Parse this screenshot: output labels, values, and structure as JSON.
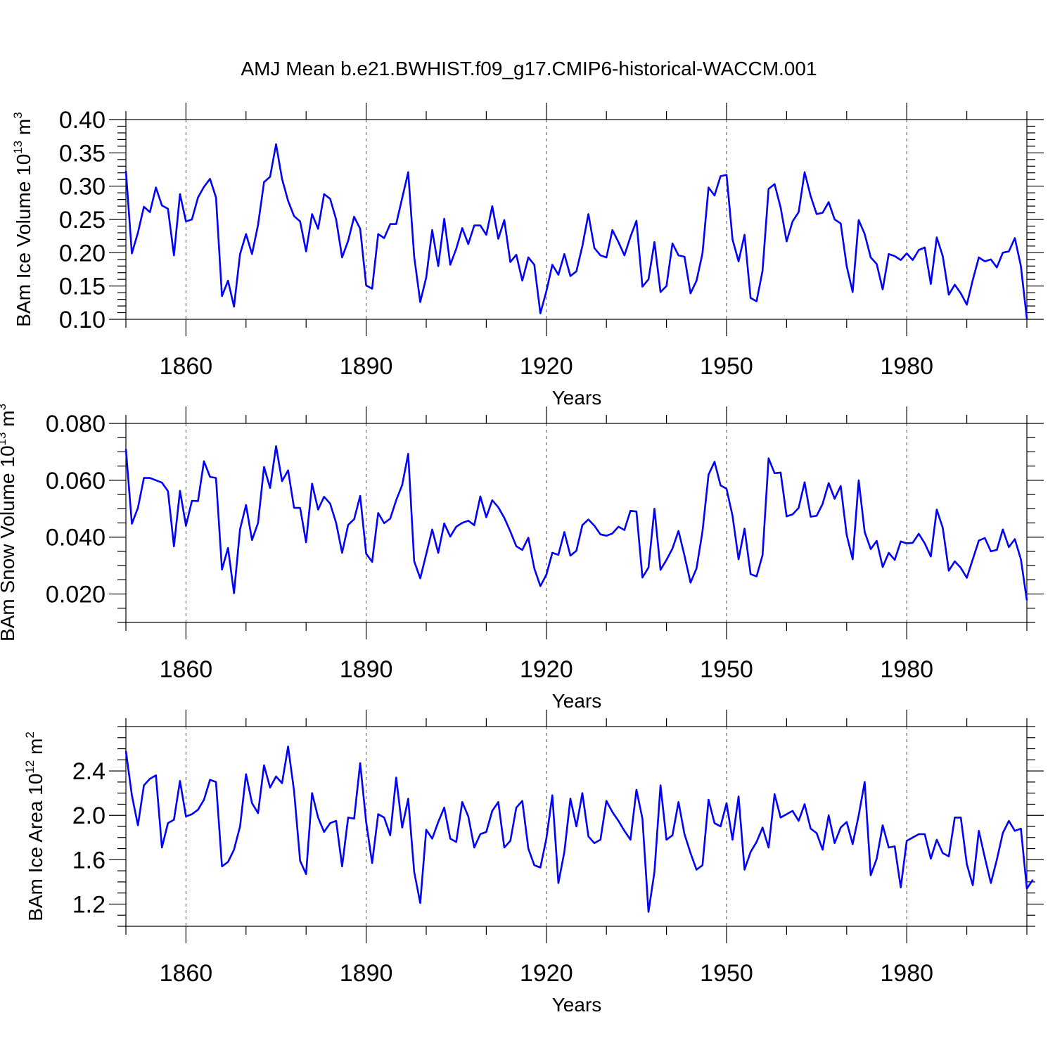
{
  "figure_title": "AMJ Mean b.e21.BWHIST.f09_g17.CMIP6-historical-WACCM.001",
  "colors": {
    "line": "#0000ff",
    "axes": "#000000"
  },
  "chart_data": [
    {
      "id": "ice-volume",
      "type": "line",
      "title": "",
      "xlabel": "Years",
      "ylabel_parts": [
        "BAm Ice Volume 10",
        "13",
        " m",
        "3"
      ],
      "xlim": [
        1850,
        2000
      ],
      "ylim": [
        0.1,
        0.4
      ],
      "x_ticks": [
        1860,
        1890,
        1920,
        1950,
        1980
      ],
      "x_tick_labels": [
        "1860",
        "1890",
        "1920",
        "1950",
        "1980"
      ],
      "y_ticks": [
        0.1,
        0.15,
        0.2,
        0.25,
        0.3,
        0.35,
        0.4
      ],
      "y_tick_labels": [
        "0.10",
        "0.15",
        "0.20",
        "0.25",
        "0.30",
        "0.35",
        "0.40"
      ],
      "y_minor_step": 0.01,
      "x_start": 1850,
      "values": [
        0.323,
        0.199,
        0.23,
        0.269,
        0.261,
        0.298,
        0.271,
        0.266,
        0.196,
        0.288,
        0.247,
        0.25,
        0.283,
        0.299,
        0.311,
        0.283,
        0.135,
        0.158,
        0.119,
        0.198,
        0.228,
        0.198,
        0.242,
        0.306,
        0.314,
        0.363,
        0.311,
        0.278,
        0.255,
        0.247,
        0.202,
        0.258,
        0.236,
        0.288,
        0.281,
        0.25,
        0.193,
        0.218,
        0.254,
        0.236,
        0.151,
        0.146,
        0.228,
        0.222,
        0.243,
        0.243,
        0.282,
        0.321,
        0.194,
        0.126,
        0.163,
        0.234,
        0.18,
        0.251,
        0.182,
        0.206,
        0.237,
        0.213,
        0.241,
        0.241,
        0.227,
        0.27,
        0.221,
        0.249,
        0.186,
        0.197,
        0.158,
        0.193,
        0.182,
        0.109,
        0.142,
        0.182,
        0.167,
        0.198,
        0.165,
        0.172,
        0.21,
        0.258,
        0.207,
        0.196,
        0.193,
        0.234,
        0.216,
        0.196,
        0.224,
        0.248,
        0.149,
        0.16,
        0.216,
        0.141,
        0.15,
        0.214,
        0.196,
        0.194,
        0.139,
        0.158,
        0.199,
        0.298,
        0.286,
        0.315,
        0.317,
        0.22,
        0.187,
        0.227,
        0.132,
        0.127,
        0.173,
        0.296,
        0.303,
        0.268,
        0.217,
        0.247,
        0.261,
        0.321,
        0.285,
        0.258,
        0.26,
        0.276,
        0.25,
        0.244,
        0.18,
        0.141,
        0.249,
        0.228,
        0.193,
        0.183,
        0.145,
        0.198,
        0.195,
        0.189,
        0.199,
        0.189,
        0.204,
        0.208,
        0.153,
        0.223,
        0.195,
        0.137,
        0.152,
        0.139,
        0.122,
        0.159,
        0.193,
        0.187,
        0.19,
        0.178,
        0.2,
        0.202,
        0.222,
        0.18,
        0.101
      ]
    },
    {
      "id": "snow-volume",
      "type": "line",
      "title": "",
      "xlabel": "Years",
      "ylabel_parts": [
        "BAm Snow Volume 10",
        "13",
        " m",
        "3"
      ],
      "xlim": [
        1850,
        2000
      ],
      "ylim": [
        0.01,
        0.08
      ],
      "x_ticks": [
        1860,
        1890,
        1920,
        1950,
        1980
      ],
      "x_tick_labels": [
        "1860",
        "1890",
        "1920",
        "1950",
        "1980"
      ],
      "y_ticks": [
        0.02,
        0.04,
        0.06,
        0.08
      ],
      "y_tick_labels": [
        "0.020",
        "0.040",
        "0.060",
        "0.080"
      ],
      "y_minor_step": 0.005,
      "x_start": 1850,
      "values": [
        0.071,
        0.0447,
        0.0503,
        0.0608,
        0.0608,
        0.06,
        0.0592,
        0.0562,
        0.0368,
        0.0563,
        0.044,
        0.0528,
        0.0527,
        0.0667,
        0.0612,
        0.0608,
        0.0286,
        0.0362,
        0.0203,
        0.0428,
        0.0513,
        0.039,
        0.045,
        0.0647,
        0.0573,
        0.072,
        0.0597,
        0.0635,
        0.0503,
        0.0503,
        0.0382,
        0.0588,
        0.0497,
        0.0542,
        0.0518,
        0.045,
        0.0345,
        0.0443,
        0.0463,
        0.0545,
        0.0342,
        0.0313,
        0.0485,
        0.0449,
        0.0465,
        0.053,
        0.0583,
        0.0693,
        0.0315,
        0.0255,
        0.034,
        0.0427,
        0.0345,
        0.0448,
        0.0402,
        0.0437,
        0.045,
        0.0458,
        0.0442,
        0.0543,
        0.047,
        0.053,
        0.0505,
        0.0468,
        0.042,
        0.0368,
        0.0355,
        0.0398,
        0.029,
        0.0228,
        0.0268,
        0.0345,
        0.0338,
        0.0418,
        0.0335,
        0.0352,
        0.0442,
        0.0462,
        0.044,
        0.041,
        0.0405,
        0.0413,
        0.0437,
        0.0425,
        0.0493,
        0.049,
        0.0258,
        0.0293,
        0.05,
        0.0285,
        0.032,
        0.036,
        0.0422,
        0.0335,
        0.024,
        0.029,
        0.042,
        0.062,
        0.0665,
        0.0582,
        0.057,
        0.0475,
        0.0322,
        0.043,
        0.027,
        0.0262,
        0.0337,
        0.0677,
        0.0625,
        0.0627,
        0.0473,
        0.048,
        0.0503,
        0.0593,
        0.0472,
        0.0475,
        0.0517,
        0.059,
        0.0535,
        0.058,
        0.0408,
        0.0322,
        0.06,
        0.0418,
        0.0358,
        0.0387,
        0.0295,
        0.0345,
        0.032,
        0.0385,
        0.0378,
        0.038,
        0.0412,
        0.0378,
        0.0332,
        0.0497,
        0.0433,
        0.0282,
        0.0315,
        0.0292,
        0.0257,
        0.0322,
        0.0388,
        0.0397,
        0.035,
        0.0355,
        0.0427,
        0.0365,
        0.0393,
        0.0322,
        0.0178
      ]
    },
    {
      "id": "ice-area",
      "type": "line",
      "title": "",
      "xlabel": "Years",
      "ylabel_parts": [
        "BAm Ice Area 10",
        "12",
        " m",
        "2"
      ],
      "xlim": [
        1850,
        2000
      ],
      "ylim": [
        1.0,
        2.8
      ],
      "x_ticks": [
        1860,
        1890,
        1920,
        1950,
        1980
      ],
      "x_tick_labels": [
        "1860",
        "1890",
        "1920",
        "1950",
        "1980"
      ],
      "y_ticks": [
        1.2,
        1.6,
        2.0,
        2.4
      ],
      "y_tick_labels": [
        "1.2",
        "1.6",
        "2.0",
        "2.4"
      ],
      "y_minor_step": 0.1,
      "x_start": 1850,
      "values": [
        2.58,
        2.18,
        1.91,
        2.27,
        2.33,
        2.36,
        1.71,
        1.93,
        1.96,
        2.31,
        1.99,
        2.01,
        2.05,
        2.14,
        2.32,
        2.3,
        1.54,
        1.58,
        1.69,
        1.9,
        2.37,
        2.11,
        2.02,
        2.45,
        2.25,
        2.35,
        2.29,
        2.62,
        2.22,
        1.59,
        1.47,
        2.2,
        1.98,
        1.85,
        1.93,
        1.95,
        1.54,
        1.98,
        1.97,
        2.47,
        1.94,
        1.57,
        2.01,
        1.98,
        1.82,
        2.34,
        1.89,
        2.15,
        1.49,
        1.21,
        1.87,
        1.79,
        1.94,
        2.07,
        1.79,
        1.76,
        2.12,
        1.99,
        1.71,
        1.83,
        1.85,
        2.04,
        2.12,
        1.71,
        1.77,
        2.07,
        2.13,
        1.7,
        1.55,
        1.53,
        1.79,
        2.18,
        1.39,
        1.67,
        2.15,
        1.9,
        2.2,
        1.81,
        1.75,
        1.78,
        2.13,
        2.03,
        1.95,
        1.86,
        1.78,
        2.23,
        1.97,
        1.13,
        1.49,
        2.27,
        1.78,
        1.82,
        2.12,
        1.83,
        1.66,
        1.51,
        1.55,
        2.14,
        1.93,
        1.9,
        2.11,
        1.78,
        2.17,
        1.51,
        1.67,
        1.76,
        1.89,
        1.71,
        2.19,
        1.98,
        2.01,
        2.04,
        1.95,
        2.1,
        1.88,
        1.84,
        1.69,
        2.0,
        1.75,
        1.89,
        1.94,
        1.74,
        2.0,
        2.3,
        1.46,
        1.61,
        1.91,
        1.71,
        1.72,
        1.35,
        1.77,
        1.8,
        1.83,
        1.83,
        1.61,
        1.78,
        1.66,
        1.63,
        1.98,
        1.98,
        1.56,
        1.37,
        1.86,
        1.62,
        1.39,
        1.6,
        1.84,
        1.95,
        1.86,
        1.88,
        1.34,
        1.42
      ]
    }
  ]
}
